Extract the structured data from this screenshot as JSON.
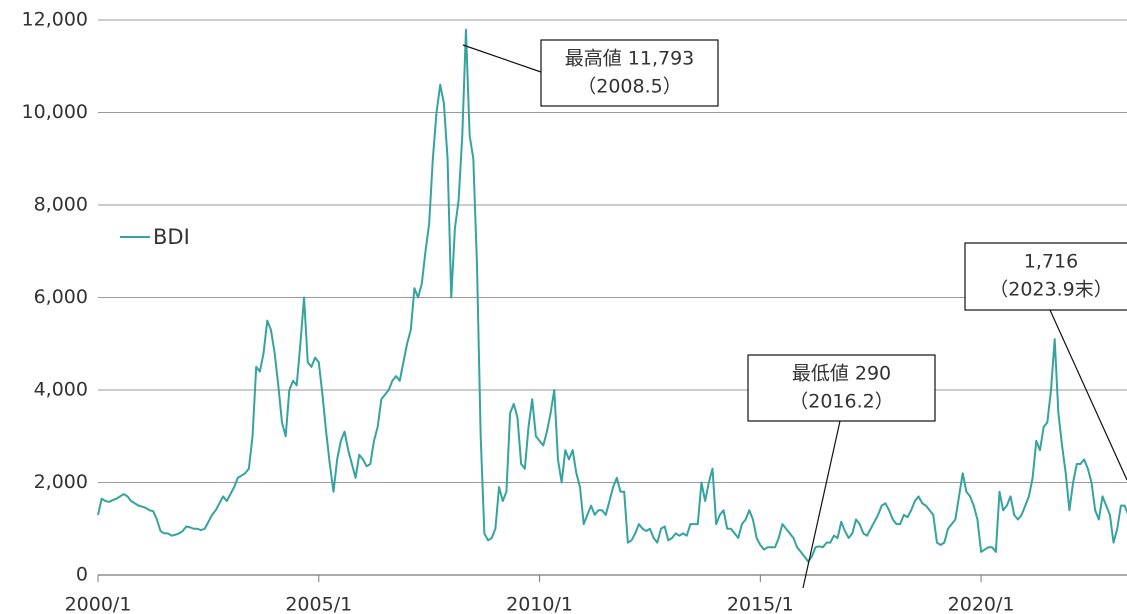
{
  "chart_data": {
    "type": "line",
    "x": [
      "2000/1",
      "2000/2",
      "2000/3",
      "2000/4",
      "2000/5",
      "2000/6",
      "2000/7",
      "2000/8",
      "2000/9",
      "2000/10",
      "2000/11",
      "2000/12",
      "2001/1",
      "2001/2",
      "2001/3",
      "2001/4",
      "2001/5",
      "2001/6",
      "2001/7",
      "2001/8",
      "2001/9",
      "2001/10",
      "2001/11",
      "2001/12",
      "2002/1",
      "2002/2",
      "2002/3",
      "2002/4",
      "2002/5",
      "2002/6",
      "2002/7",
      "2002/8",
      "2002/9",
      "2002/10",
      "2002/11",
      "2002/12",
      "2003/1",
      "2003/2",
      "2003/3",
      "2003/4",
      "2003/5",
      "2003/6",
      "2003/7",
      "2003/8",
      "2003/9",
      "2003/10",
      "2003/11",
      "2003/12",
      "2004/1",
      "2004/2",
      "2004/3",
      "2004/4",
      "2004/5",
      "2004/6",
      "2004/7",
      "2004/8",
      "2004/9",
      "2004/10",
      "2004/11",
      "2004/12",
      "2005/1",
      "2005/2",
      "2005/3",
      "2005/4",
      "2005/5",
      "2005/6",
      "2005/7",
      "2005/8",
      "2005/9",
      "2005/10",
      "2005/11",
      "2005/12",
      "2006/1",
      "2006/2",
      "2006/3",
      "2006/4",
      "2006/5",
      "2006/6",
      "2006/7",
      "2006/8",
      "2006/9",
      "2006/10",
      "2006/11",
      "2006/12",
      "2007/1",
      "2007/2",
      "2007/3",
      "2007/4",
      "2007/5",
      "2007/6",
      "2007/7",
      "2007/8",
      "2007/9",
      "2007/10",
      "2007/11",
      "2007/12",
      "2008/1",
      "2008/2",
      "2008/3",
      "2008/4",
      "2008/5",
      "2008/6",
      "2008/7",
      "2008/8",
      "2008/9",
      "2008/10",
      "2008/11",
      "2008/12",
      "2009/1",
      "2009/2",
      "2009/3",
      "2009/4",
      "2009/5",
      "2009/6",
      "2009/7",
      "2009/8",
      "2009/9",
      "2009/10",
      "2009/11",
      "2009/12",
      "2010/1",
      "2010/2",
      "2010/3",
      "2010/4",
      "2010/5",
      "2010/6",
      "2010/7",
      "2010/8",
      "2010/9",
      "2010/10",
      "2010/11",
      "2010/12",
      "2011/1",
      "2011/2",
      "2011/3",
      "2011/4",
      "2011/5",
      "2011/6",
      "2011/7",
      "2011/8",
      "2011/9",
      "2011/10",
      "2011/11",
      "2011/12",
      "2012/1",
      "2012/2",
      "2012/3",
      "2012/4",
      "2012/5",
      "2012/6",
      "2012/7",
      "2012/8",
      "2012/9",
      "2012/10",
      "2012/11",
      "2012/12",
      "2013/1",
      "2013/2",
      "2013/3",
      "2013/4",
      "2013/5",
      "2013/6",
      "2013/7",
      "2013/8",
      "2013/9",
      "2013/10",
      "2013/11",
      "2013/12",
      "2014/1",
      "2014/2",
      "2014/3",
      "2014/4",
      "2014/5",
      "2014/6",
      "2014/7",
      "2014/8",
      "2014/9",
      "2014/10",
      "2014/11",
      "2014/12",
      "2015/1",
      "2015/2",
      "2015/3",
      "2015/4",
      "2015/5",
      "2015/6",
      "2015/7",
      "2015/8",
      "2015/9",
      "2015/10",
      "2015/11",
      "2015/12",
      "2016/1",
      "2016/2",
      "2016/3",
      "2016/4",
      "2016/5",
      "2016/6",
      "2016/7",
      "2016/8",
      "2016/9",
      "2016/10",
      "2016/11",
      "2016/12",
      "2017/1",
      "2017/2",
      "2017/3",
      "2017/4",
      "2017/5",
      "2017/6",
      "2017/7",
      "2017/8",
      "2017/9",
      "2017/10",
      "2017/11",
      "2017/12",
      "2018/1",
      "2018/2",
      "2018/3",
      "2018/4",
      "2018/5",
      "2018/6",
      "2018/7",
      "2018/8",
      "2018/9",
      "2018/10",
      "2018/11",
      "2018/12",
      "2019/1",
      "2019/2",
      "2019/3",
      "2019/4",
      "2019/5",
      "2019/6",
      "2019/7",
      "2019/8",
      "2019/9",
      "2019/10",
      "2019/11",
      "2019/12",
      "2020/1",
      "2020/2",
      "2020/3",
      "2020/4",
      "2020/5",
      "2020/6",
      "2020/7",
      "2020/8",
      "2020/9",
      "2020/10",
      "2020/11",
      "2020/12",
      "2021/1",
      "2021/2",
      "2021/3",
      "2021/4",
      "2021/5",
      "2021/6",
      "2021/7",
      "2021/8",
      "2021/9",
      "2021/10",
      "2021/11",
      "2021/12",
      "2022/1",
      "2022/2",
      "2022/3",
      "2022/4",
      "2022/5",
      "2022/6",
      "2022/7",
      "2022/8",
      "2022/9",
      "2022/10",
      "2022/11",
      "2022/12",
      "2023/1",
      "2023/2",
      "2023/3",
      "2023/4",
      "2023/5",
      "2023/6",
      "2023/7",
      "2023/8",
      "2023/9"
    ],
    "series": [
      {
        "name": "BDI",
        "color": "#35a39e",
        "values": [
          1300,
          1650,
          1600,
          1580,
          1620,
          1650,
          1700,
          1750,
          1700,
          1600,
          1550,
          1500,
          1480,
          1450,
          1400,
          1380,
          1200,
          950,
          900,
          900,
          850,
          870,
          900,
          950,
          1050,
          1030,
          1000,
          1000,
          970,
          1000,
          1150,
          1300,
          1400,
          1550,
          1700,
          1600,
          1750,
          1900,
          2100,
          2150,
          2200,
          2300,
          3000,
          4500,
          4400,
          4800,
          5500,
          5300,
          4800,
          4100,
          3300,
          3000,
          4000,
          4200,
          4100,
          5000,
          6000,
          4600,
          4500,
          4700,
          4600,
          3900,
          3100,
          2400,
          1800,
          2500,
          2900,
          3100,
          2700,
          2400,
          2100,
          2600,
          2500,
          2350,
          2400,
          2900,
          3200,
          3800,
          3900,
          4000,
          4200,
          4300,
          4200,
          4600,
          5000,
          5300,
          6200,
          6000,
          6300,
          7000,
          7600,
          9000,
          10000,
          10600,
          10200,
          9000,
          6000,
          7500,
          8100,
          9500,
          11793,
          9500,
          9000,
          6700,
          3000,
          900,
          750,
          800,
          1000,
          1900,
          1600,
          1800,
          3500,
          3700,
          3400,
          2400,
          2300,
          3200,
          3800,
          3000,
          2900,
          2800,
          3100,
          3500,
          4000,
          2500,
          2000,
          2700,
          2500,
          2700,
          2200,
          1900,
          1100,
          1300,
          1500,
          1300,
          1400,
          1400,
          1300,
          1600,
          1900,
          2100,
          1800,
          1800,
          700,
          750,
          900,
          1100,
          1000,
          950,
          1000,
          800,
          700,
          1000,
          1050,
          750,
          800,
          900,
          850,
          900,
          850,
          1100,
          1100,
          1100,
          2000,
          1600,
          2000,
          2300,
          1100,
          1300,
          1400,
          1000,
          1000,
          900,
          800,
          1100,
          1200,
          1400,
          1200,
          800,
          650,
          550,
          600,
          600,
          600,
          800,
          1100,
          1000,
          900,
          800,
          600,
          500,
          400,
          290,
          400,
          600,
          620,
          600,
          700,
          700,
          850,
          800,
          1150,
          950,
          800,
          900,
          1200,
          1100,
          900,
          850,
          1000,
          1150,
          1300,
          1500,
          1550,
          1400,
          1200,
          1100,
          1100,
          1300,
          1250,
          1400,
          1600,
          1700,
          1550,
          1500,
          1400,
          1300,
          700,
          650,
          700,
          1000,
          1100,
          1200,
          1700,
          2200,
          1800,
          1700,
          1500,
          1200,
          500,
          550,
          600,
          600,
          500,
          1800,
          1400,
          1500,
          1700,
          1300,
          1200,
          1300,
          1500,
          1700,
          2100,
          2900,
          2700,
          3200,
          3300,
          4000,
          5100,
          3500,
          2800,
          2200,
          1400,
          2000,
          2400,
          2400,
          2500,
          2300,
          2000,
          1400,
          1200,
          1700,
          1500,
          1300,
          700,
          1000,
          1500,
          1500,
          1300,
          1200,
          1100,
          1150,
          1716
        ]
      }
    ],
    "xlim": [
      "2000/1",
      "2023/9"
    ],
    "xticks": [
      "2000/1",
      "2005/1",
      "2010/1",
      "2015/1",
      "2020/1"
    ],
    "ylim": [
      0,
      12000
    ],
    "yticks": [
      0,
      {
        "value": 2000,
        "label": "2,000"
      },
      {
        "value": 4000,
        "label": "4,000"
      },
      {
        "value": 6000,
        "label": "6,000"
      },
      {
        "value": 8000,
        "label": "8,000"
      },
      {
        "value": 10000,
        "label": "10,000"
      },
      {
        "value": 12000,
        "label": "12,000"
      }
    ],
    "grid": true,
    "legend": "left",
    "annotations": [
      {
        "lines": [
          "最高値 11,793",
          "（2008.5）"
        ]
      },
      {
        "lines": [
          "最低値 290",
          "（2016.2）"
        ]
      },
      {
        "lines": [
          "1,716",
          "（2023.9末）"
        ]
      }
    ]
  }
}
